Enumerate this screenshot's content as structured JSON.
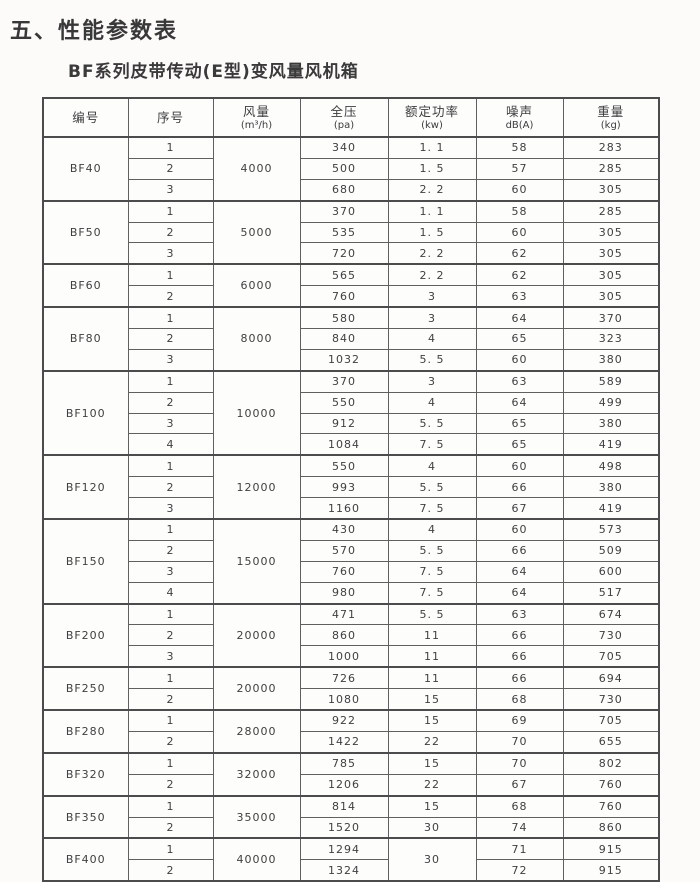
{
  "page": {
    "title": "五、性能参数表",
    "subtitle": "BF系列皮带传动(E型)变风量风机箱"
  },
  "table": {
    "headers": [
      {
        "label": "编号",
        "unit": ""
      },
      {
        "label": "序号",
        "unit": ""
      },
      {
        "label": "风量",
        "unit": "(m³/h)"
      },
      {
        "label": "全压",
        "unit": "(pa)"
      },
      {
        "label": "额定功率",
        "unit": "(kw)"
      },
      {
        "label": "噪声",
        "unit": "dB(A)"
      },
      {
        "label": "重量",
        "unit": "(kg)"
      }
    ],
    "groups": [
      {
        "model": "BF40",
        "airflow": "4000",
        "rows": [
          {
            "seq": "1",
            "pressure": "340",
            "power": "1. 1",
            "noise": "58",
            "weight": "283"
          },
          {
            "seq": "2",
            "pressure": "500",
            "power": "1. 5",
            "noise": "57",
            "weight": "285"
          },
          {
            "seq": "3",
            "pressure": "680",
            "power": "2. 2",
            "noise": "60",
            "weight": "305"
          }
        ]
      },
      {
        "model": "BF50",
        "airflow": "5000",
        "rows": [
          {
            "seq": "1",
            "pressure": "370",
            "power": "1. 1",
            "noise": "58",
            "weight": "285"
          },
          {
            "seq": "2",
            "pressure": "535",
            "power": "1. 5",
            "noise": "60",
            "weight": "305"
          },
          {
            "seq": "3",
            "pressure": "720",
            "power": "2. 2",
            "noise": "62",
            "weight": "305"
          }
        ]
      },
      {
        "model": "BF60",
        "airflow": "6000",
        "rows": [
          {
            "seq": "1",
            "pressure": "565",
            "power": "2. 2",
            "noise": "62",
            "weight": "305"
          },
          {
            "seq": "2",
            "pressure": "760",
            "power": "3",
            "noise": "63",
            "weight": "305"
          }
        ]
      },
      {
        "model": "BF80",
        "airflow": "8000",
        "rows": [
          {
            "seq": "1",
            "pressure": "580",
            "power": "3",
            "noise": "64",
            "weight": "370"
          },
          {
            "seq": "2",
            "pressure": "840",
            "power": "4",
            "noise": "65",
            "weight": "323"
          },
          {
            "seq": "3",
            "pressure": "1032",
            "power": "5. 5",
            "noise": "60",
            "weight": "380"
          }
        ]
      },
      {
        "model": "BF100",
        "airflow": "10000",
        "rows": [
          {
            "seq": "1",
            "pressure": "370",
            "power": "3",
            "noise": "63",
            "weight": "589"
          },
          {
            "seq": "2",
            "pressure": "550",
            "power": "4",
            "noise": "64",
            "weight": "499"
          },
          {
            "seq": "3",
            "pressure": "912",
            "power": "5. 5",
            "noise": "65",
            "weight": "380"
          },
          {
            "seq": "4",
            "pressure": "1084",
            "power": "7. 5",
            "noise": "65",
            "weight": "419"
          }
        ]
      },
      {
        "model": "BF120",
        "airflow": "12000",
        "rows": [
          {
            "seq": "1",
            "pressure": "550",
            "power": "4",
            "noise": "60",
            "weight": "498"
          },
          {
            "seq": "2",
            "pressure": "993",
            "power": "5. 5",
            "noise": "66",
            "weight": "380"
          },
          {
            "seq": "3",
            "pressure": "1160",
            "power": "7. 5",
            "noise": "67",
            "weight": "419"
          }
        ]
      },
      {
        "model": "BF150",
        "airflow": "15000",
        "rows": [
          {
            "seq": "1",
            "pressure": "430",
            "power": "4",
            "noise": "60",
            "weight": "573"
          },
          {
            "seq": "2",
            "pressure": "570",
            "power": "5. 5",
            "noise": "66",
            "weight": "509"
          },
          {
            "seq": "3",
            "pressure": "760",
            "power": "7. 5",
            "noise": "64",
            "weight": "600"
          },
          {
            "seq": "4",
            "pressure": "980",
            "power": "7. 5",
            "noise": "64",
            "weight": "517"
          }
        ]
      },
      {
        "model": "BF200",
        "airflow": "20000",
        "rows": [
          {
            "seq": "1",
            "pressure": "471",
            "power": "5. 5",
            "noise": "63",
            "weight": "674"
          },
          {
            "seq": "2",
            "pressure": "860",
            "power": "11",
            "noise": "66",
            "weight": "730"
          },
          {
            "seq": "3",
            "pressure": "1000",
            "power": "11",
            "noise": "66",
            "weight": "705"
          }
        ]
      },
      {
        "model": "BF250",
        "airflow": "20000",
        "rows": [
          {
            "seq": "1",
            "pressure": "726",
            "power": "11",
            "noise": "66",
            "weight": "694"
          },
          {
            "seq": "2",
            "pressure": "1080",
            "power": "15",
            "noise": "68",
            "weight": "730"
          }
        ]
      },
      {
        "model": "BF280",
        "airflow": "28000",
        "rows": [
          {
            "seq": "1",
            "pressure": "922",
            "power": "15",
            "noise": "69",
            "weight": "705"
          },
          {
            "seq": "2",
            "pressure": "1422",
            "power": "22",
            "noise": "70",
            "weight": "655"
          }
        ]
      },
      {
        "model": "BF320",
        "airflow": "32000",
        "rows": [
          {
            "seq": "1",
            "pressure": "785",
            "power": "15",
            "noise": "70",
            "weight": "802"
          },
          {
            "seq": "2",
            "pressure": "1206",
            "power": "22",
            "noise": "67",
            "weight": "760"
          }
        ]
      },
      {
        "model": "BF350",
        "airflow": "35000",
        "rows": [
          {
            "seq": "1",
            "pressure": "814",
            "power": "15",
            "noise": "68",
            "weight": "760"
          },
          {
            "seq": "2",
            "pressure": "1520",
            "power": "30",
            "noise": "74",
            "weight": "860"
          }
        ]
      },
      {
        "model": "BF400",
        "airflow": "40000",
        "power_merged": "30",
        "rows": [
          {
            "seq": "1",
            "pressure": "1294",
            "noise": "71",
            "weight": "915"
          },
          {
            "seq": "2",
            "pressure": "1324",
            "noise": "72",
            "weight": "915"
          }
        ]
      }
    ]
  }
}
